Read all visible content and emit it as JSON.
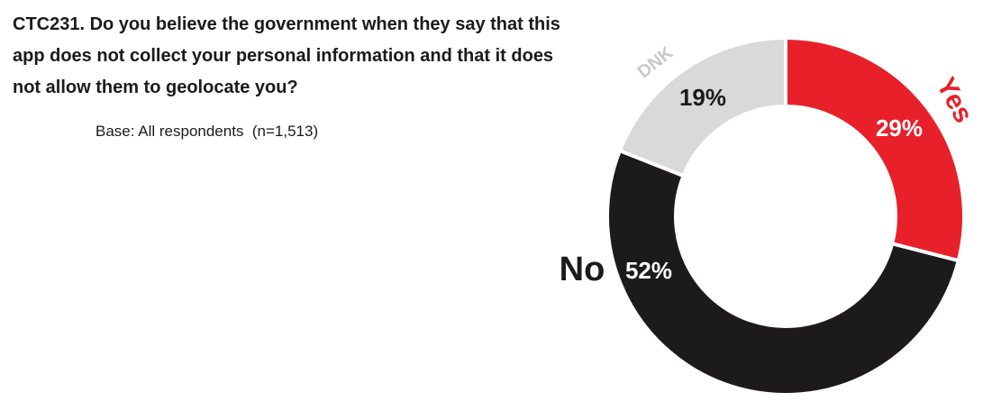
{
  "chart_data": {
    "type": "pie",
    "title": "CTC231. Do you believe the government when they say that this app does not collect your personal information and that it does not allow them to geolocate you?",
    "subtitle": "Base: All respondents  (n=1,513)",
    "categories": [
      "Yes",
      "No",
      "DNK"
    ],
    "values": [
      29,
      52,
      19
    ],
    "value_labels": [
      "29%",
      "52%",
      "19%"
    ],
    "colors": [
      "#e8202a",
      "#1c1a1b",
      "#d9d9d9"
    ],
    "label_colors": [
      "#e8202a",
      "#1c1a1b",
      "#c9c9c9"
    ],
    "value_label_colors": [
      "#ffffff",
      "#ffffff",
      "#1c1a1b"
    ]
  }
}
